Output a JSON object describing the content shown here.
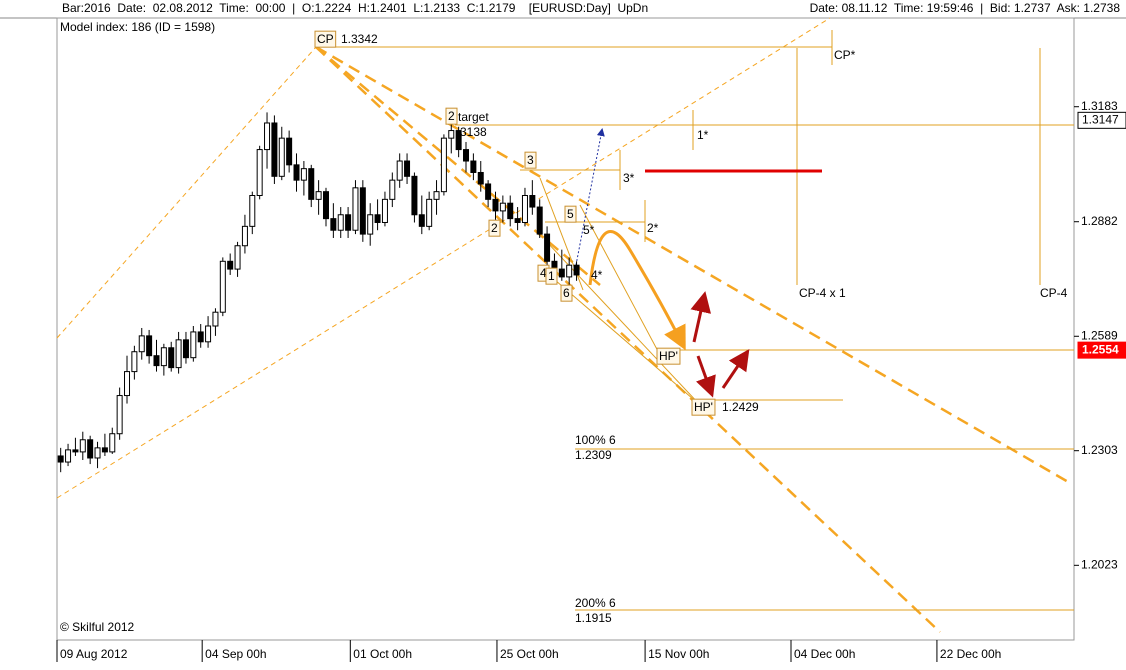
{
  "header": {
    "left": "Bar:2016  Date:  02.08.2012  Time:  00:00  |  O:1.2224  H:1.2401  L:1.2133  C:1.2179    [EURUSD:Day]  UpDn",
    "right": "Date: 08.11.12  Time: 19:59:46  |  Bid: 1.2737  Ask: 1.2738"
  },
  "model_index": "Model index: 186  (ID = 1598)",
  "copyright": "© Skilful 2012",
  "annotations": {
    "cp": "CP",
    "cp_price": "1.3342",
    "box2_top": "2",
    "target": "target",
    "target_price": "3138",
    "box3": "3",
    "star3": "3*",
    "box5": "5",
    "star5": "5*",
    "box2": "2",
    "star2": "2*",
    "star1": "1*",
    "box4": "4",
    "box1": "1",
    "star4": "4*",
    "box6": "6",
    "cp_star": "CP*",
    "cp4x1": "CP-4 x 1",
    "cp4": "CP-4",
    "hp1": "HP'",
    "hp2": "HP'",
    "hp2_price": "1.2429",
    "pct100": "100% 6",
    "pct100_price": "1.2309",
    "pct200": "200% 6",
    "pct200_price": "1.1915"
  },
  "chart_data": {
    "type": "candlestick",
    "log": true,
    "ylim": [
      1.1844,
      1.342
    ],
    "yticks": [
      1.2023,
      1.2303,
      1.2589,
      1.2882,
      1.3183
    ],
    "xlim": [
      0,
      138
    ],
    "xticks": [
      {
        "value": 0,
        "label": "09 Aug 2012"
      },
      {
        "value": 19.7,
        "label": "04 Sep 00h"
      },
      {
        "value": 39.8,
        "label": "01 Oct 00h"
      },
      {
        "value": 59.7,
        "label": "25 Oct 00h"
      },
      {
        "value": 79.8,
        "label": "15 Nov 00h"
      },
      {
        "value": 99.6,
        "label": "04 Dec 00h"
      },
      {
        "value": 119.4,
        "label": "22 Dec 00h"
      }
    ],
    "price_markers": [
      {
        "value": 1.3147,
        "color": "#ffffff"
      },
      {
        "value": 1.2554,
        "color": "#ff0000"
      }
    ],
    "up_color": "#ffffff",
    "down_color": "#000000",
    "open": [
      1.229,
      1.2275,
      1.2305,
      1.23,
      1.233,
      1.2285,
      1.231,
      1.23,
      1.2345,
      1.244,
      1.25,
      1.255,
      1.259,
      1.254,
      1.2515,
      1.256,
      1.251,
      1.258,
      1.2535,
      1.26,
      1.2575,
      1.2615,
      1.265,
      1.278,
      1.276,
      1.282,
      1.287,
      1.295,
      1.307,
      1.314,
      1.3,
      1.31,
      1.303,
      1.299,
      1.302,
      1.294,
      1.296,
      1.289,
      1.286,
      1.29,
      1.286,
      1.297,
      1.285,
      1.29,
      1.288,
      1.294,
      1.299,
      1.304,
      1.3,
      1.29,
      1.287,
      1.294,
      1.296,
      1.31,
      1.312,
      1.307,
      1.304,
      1.301,
      1.298,
      1.294,
      1.291,
      1.293,
      1.289,
      1.288,
      1.295,
      1.292,
      1.285,
      1.278,
      1.276,
      1.274,
      1.277
    ],
    "high": [
      1.231,
      1.232,
      1.2335,
      1.235,
      1.234,
      1.2325,
      1.2345,
      1.236,
      1.246,
      1.254,
      1.2565,
      1.261,
      1.2605,
      1.258,
      1.257,
      1.2575,
      1.26,
      1.26,
      1.2615,
      1.262,
      1.264,
      1.266,
      1.279,
      1.28,
      1.283,
      1.29,
      1.296,
      1.308,
      1.3168,
      1.316,
      1.313,
      1.312,
      1.306,
      1.304,
      1.303,
      1.299,
      1.297,
      1.293,
      1.292,
      1.292,
      1.299,
      1.299,
      1.293,
      1.294,
      1.296,
      1.301,
      1.306,
      1.306,
      1.301,
      1.295,
      1.296,
      1.299,
      1.311,
      1.315,
      1.313,
      1.309,
      1.306,
      1.304,
      1.299,
      1.296,
      1.295,
      1.295,
      1.292,
      1.297,
      1.299,
      1.294,
      1.287,
      1.28,
      1.281,
      1.279,
      1.278
    ],
    "low": [
      1.225,
      1.2265,
      1.229,
      1.228,
      1.227,
      1.226,
      1.229,
      1.2295,
      1.233,
      1.242,
      1.248,
      1.253,
      1.252,
      1.25,
      1.249,
      1.25,
      1.2495,
      1.252,
      1.2525,
      1.256,
      1.256,
      1.259,
      1.264,
      1.2745,
      1.274,
      1.28,
      1.285,
      1.294,
      1.302,
      1.298,
      1.299,
      1.301,
      1.296,
      1.295,
      1.292,
      1.29,
      1.287,
      1.284,
      1.284,
      1.284,
      1.285,
      1.283,
      1.282,
      1.286,
      1.287,
      1.292,
      1.297,
      1.298,
      1.288,
      1.285,
      1.286,
      1.29,
      1.295,
      1.306,
      1.305,
      1.301,
      1.299,
      1.296,
      1.292,
      1.288,
      1.288,
      1.287,
      1.286,
      1.287,
      1.29,
      1.284,
      1.276,
      1.274,
      1.273,
      1.272,
      1.273
    ],
    "close": [
      1.2275,
      1.2305,
      1.23,
      1.233,
      1.2285,
      1.231,
      1.23,
      1.2345,
      1.244,
      1.25,
      1.255,
      1.259,
      1.254,
      1.2515,
      1.256,
      1.251,
      1.258,
      1.2535,
      1.26,
      1.2575,
      1.2615,
      1.265,
      1.278,
      1.276,
      1.282,
      1.287,
      1.295,
      1.307,
      1.314,
      1.3,
      1.31,
      1.303,
      1.299,
      1.302,
      1.294,
      1.296,
      1.289,
      1.286,
      1.29,
      1.286,
      1.297,
      1.285,
      1.29,
      1.288,
      1.294,
      1.299,
      1.304,
      1.3,
      1.29,
      1.287,
      1.294,
      1.296,
      1.31,
      1.312,
      1.307,
      1.304,
      1.301,
      1.298,
      1.294,
      1.291,
      1.293,
      1.289,
      1.288,
      1.295,
      1.292,
      1.285,
      1.278,
      1.276,
      1.274,
      1.277,
      1.2745
    ]
  }
}
